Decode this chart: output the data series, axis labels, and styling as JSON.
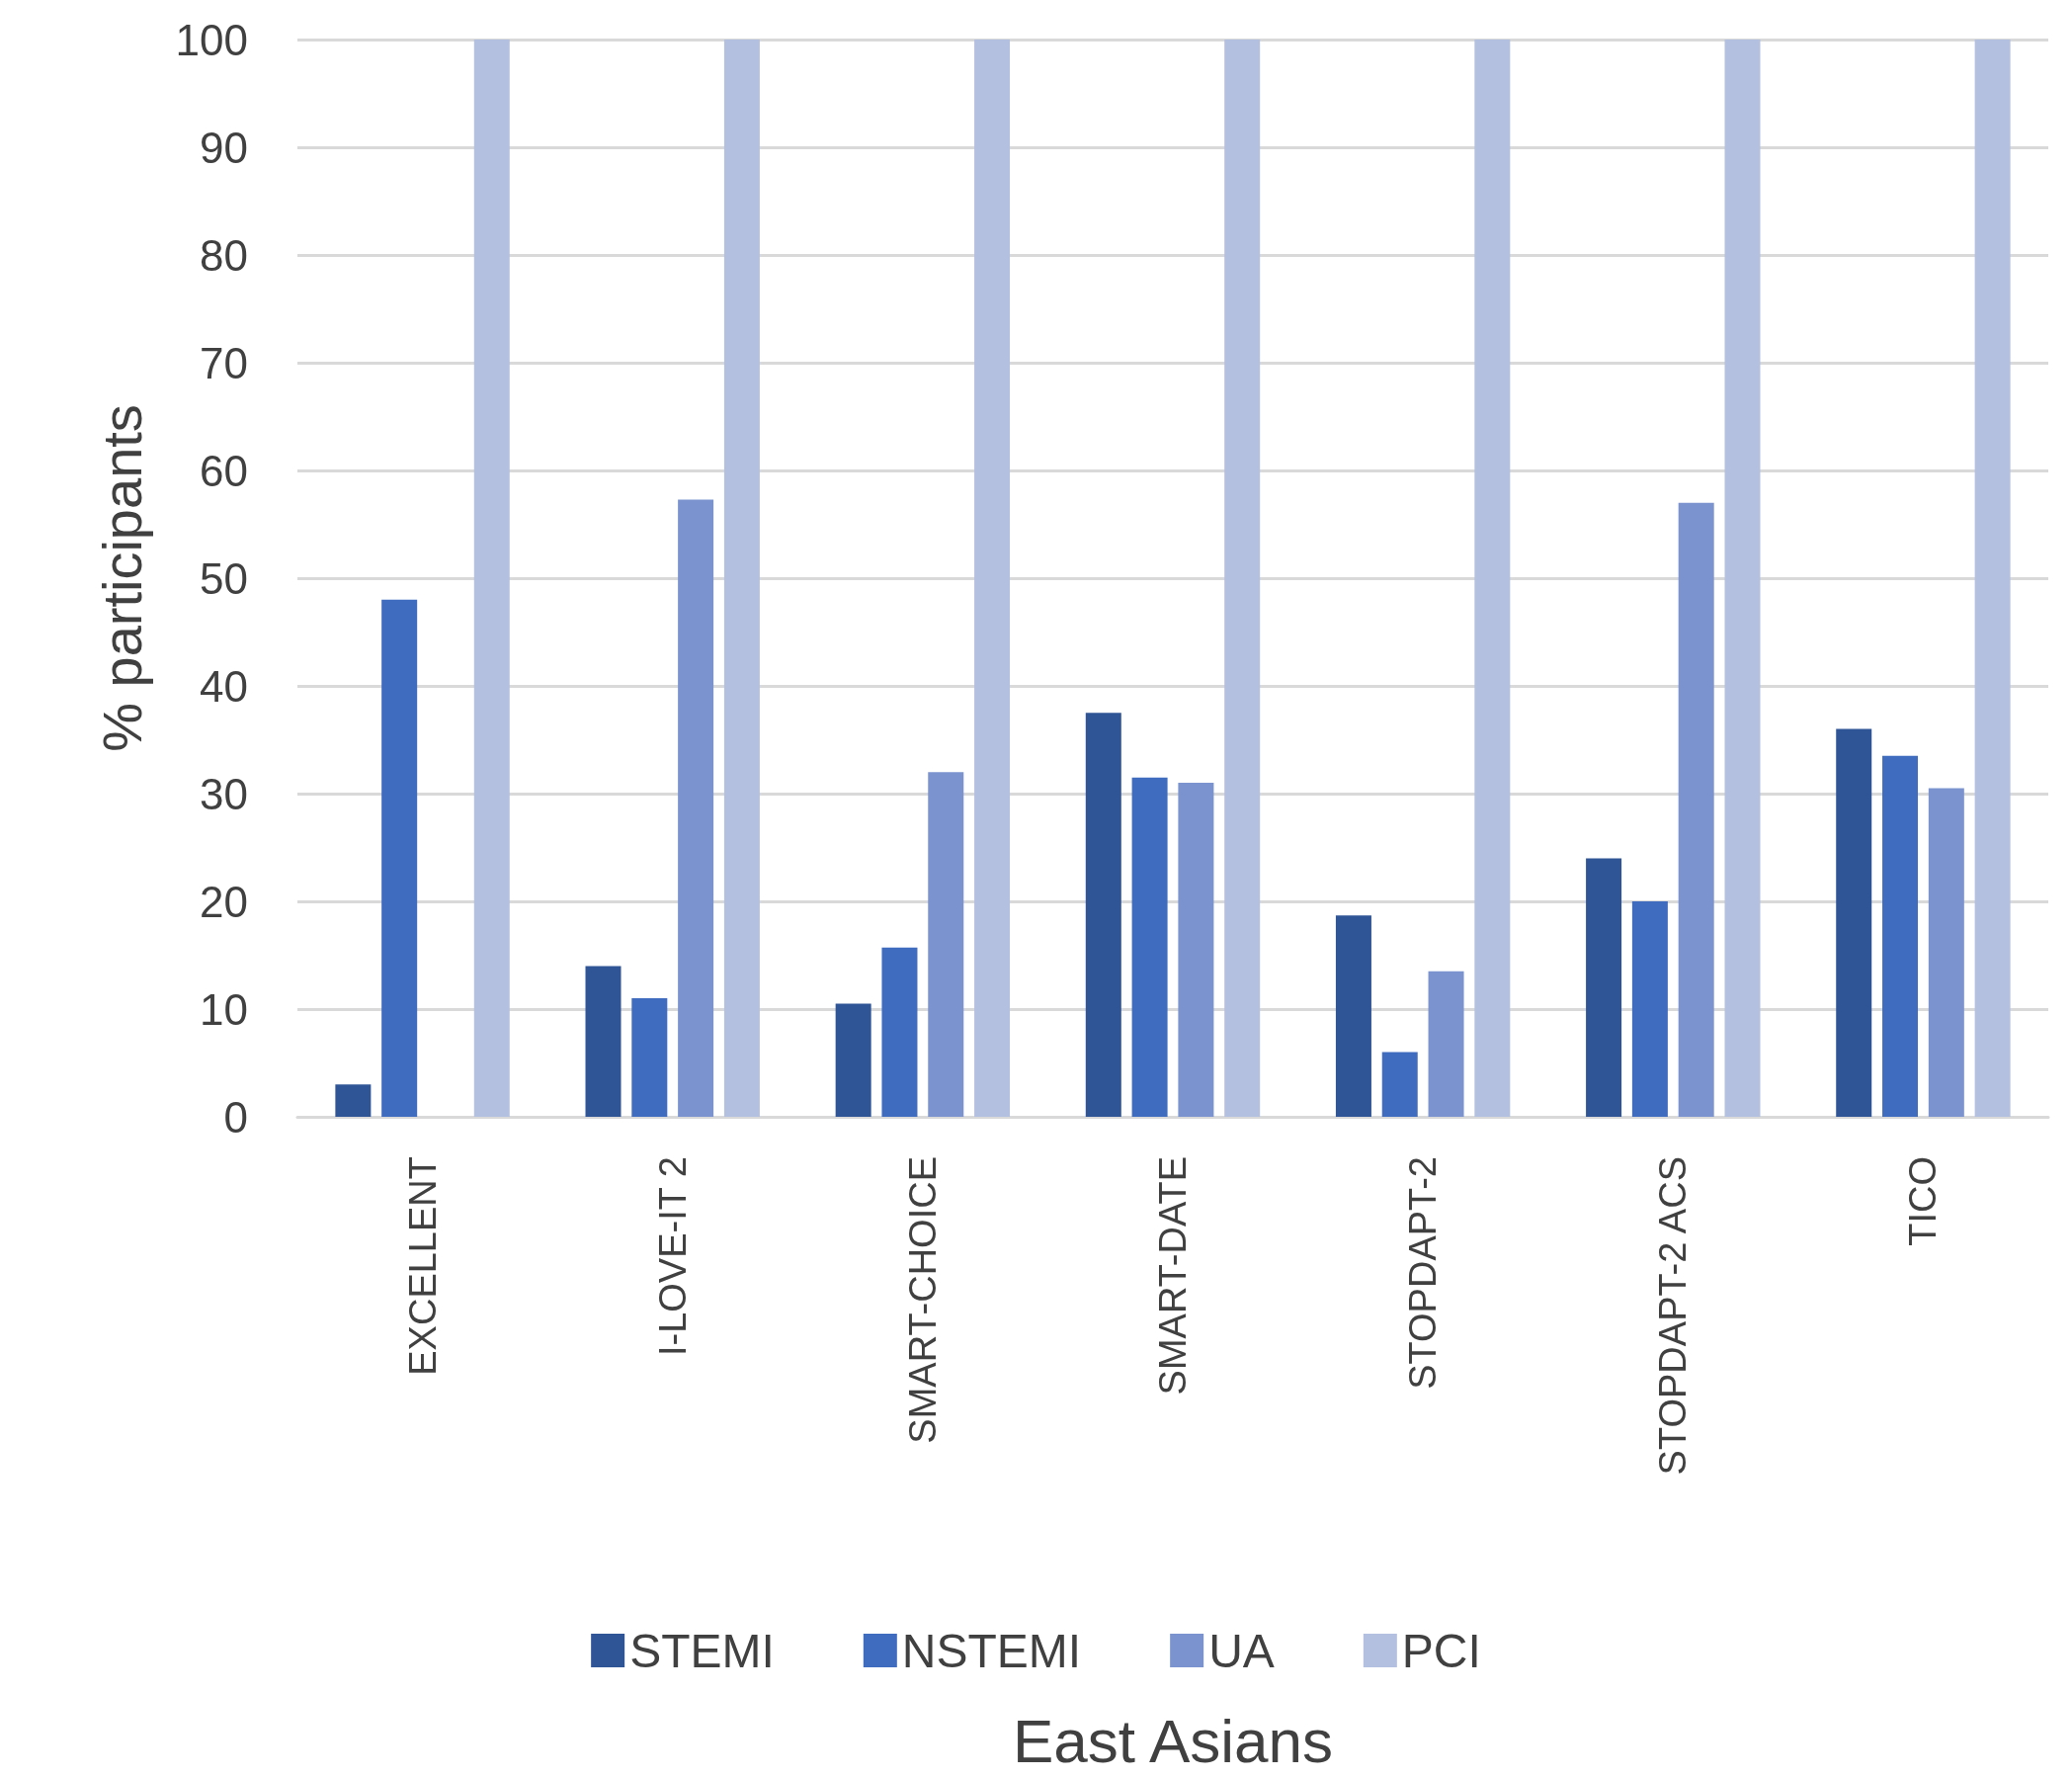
{
  "chart_data": {
    "type": "bar",
    "xlabel": "East Asians",
    "ylabel": "% participants",
    "categories": [
      "EXCELLENT",
      "I-LOVE-IT 2",
      "SMART-CHOICE",
      "SMART-DATE",
      "STOPDAPT-2",
      "STOPDAPT-2 ACS",
      "TICO"
    ],
    "series": [
      {
        "name": "STEMI",
        "color": "#2f5597",
        "values": [
          3,
          14,
          10.5,
          37.5,
          18.7,
          24,
          36
        ]
      },
      {
        "name": "NSTEMI",
        "color": "#3f6cbf",
        "values": [
          48,
          11,
          15.7,
          31.5,
          6,
          20,
          33.5
        ]
      },
      {
        "name": "UA",
        "color": "#7b93cf",
        "values": [
          0,
          57.3,
          32,
          31,
          13.5,
          57,
          30.5
        ]
      },
      {
        "name": "PCI",
        "color": "#b4c0e0",
        "values": [
          100,
          100,
          100,
          100,
          100,
          100,
          100
        ]
      }
    ],
    "ylim": [
      0,
      100
    ],
    "yticks": [
      0,
      10,
      20,
      30,
      40,
      50,
      60,
      70,
      80,
      90,
      100
    ],
    "grid": "y",
    "legend": "bottom"
  }
}
